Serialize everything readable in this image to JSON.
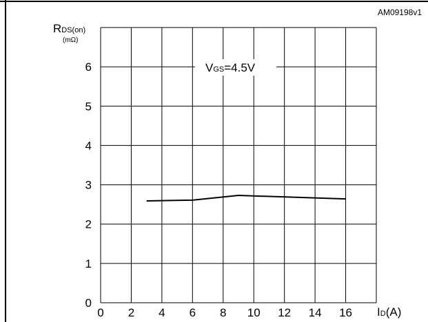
{
  "chart_data": {
    "type": "line",
    "figure_code": "AM09198v1",
    "annotation": {
      "prefix": "V",
      "subscript": "GS",
      "suffix": "=4.5V"
    },
    "ylabel": {
      "main": "R",
      "subscript": "DS(on)",
      "unit": "(mΩ)"
    },
    "xlabel": {
      "main": "I",
      "subscript": "D",
      "suffix": "(A)"
    },
    "xlim": [
      0,
      18
    ],
    "ylim": [
      0,
      7
    ],
    "xticks": [
      0,
      2,
      4,
      6,
      8,
      10,
      12,
      14,
      16
    ],
    "yticks": [
      0,
      1,
      2,
      3,
      4,
      5,
      6
    ],
    "grid": true,
    "series": [
      {
        "x": [
          3,
          6,
          9,
          16
        ],
        "y": [
          2.59,
          2.61,
          2.73,
          2.64
        ]
      }
    ]
  }
}
